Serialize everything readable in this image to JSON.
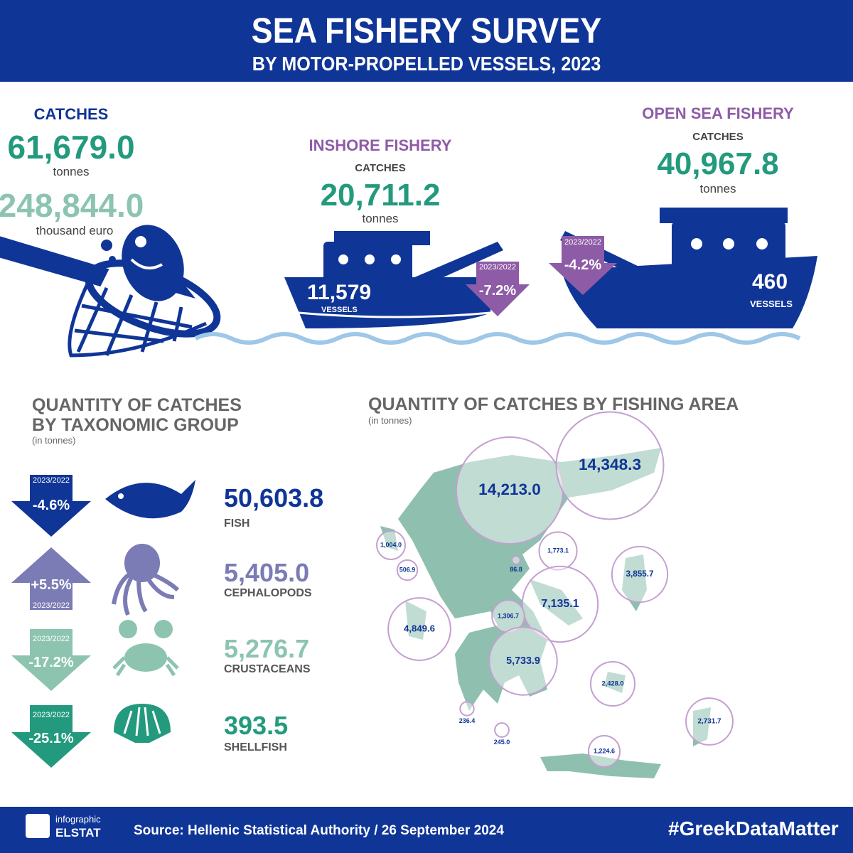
{
  "header": {
    "title": "SEA FISHERY SURVEY",
    "subtitle": "BY MOTOR-PROPELLED VESSELS, 2023"
  },
  "total": {
    "label": "CATCHES",
    "catches": "61,679.0",
    "catches_unit": "tonnes",
    "value": "248,844.0",
    "value_unit": "thousand euro"
  },
  "inshore": {
    "title": "INSHORE FISHERY",
    "catches_label": "CATCHES",
    "catches": "20,711.2",
    "unit": "tonnes",
    "vessels": "11,579",
    "vessels_label": "VESSELS",
    "period": "2023/2022",
    "change": "-7.2%"
  },
  "open_sea": {
    "title": "OPEN SEA FISHERY",
    "catches_label": "CATCHES",
    "catches": "40,967.8",
    "unit": "tonnes",
    "vessels": "460",
    "vessels_label": "VESSELS",
    "period": "2023/2022",
    "change": "-4.2%"
  },
  "taxonomic": {
    "title_lines": [
      "QUANTITY OF CATCHES",
      "BY TAXONOMIC GROUP"
    ],
    "unit": "(in tonnes)",
    "groups": [
      {
        "name": "FISH",
        "value": "50,603.8",
        "period": "2023/2022",
        "change": "-4.6%"
      },
      {
        "name": "CEPHALOPODS",
        "value": "5,405.0",
        "period": "2023/2022",
        "change": "+5.5%"
      },
      {
        "name": "CRUSTACEANS",
        "value": "5,276.7",
        "period": "2023/2022",
        "change": "-17.2%"
      },
      {
        "name": "SHELLFISH",
        "value": "393.5",
        "period": "2023/2022",
        "change": "-25.1%"
      }
    ]
  },
  "areas": {
    "title": "QUANTITY OF CATCHES BY FISHING AREA",
    "unit": "(in tonnes)",
    "bubbles": [
      {
        "value": 14213.0,
        "label": "14,213.0"
      },
      {
        "value": 14348.3,
        "label": "14,348.3"
      },
      {
        "value": 1004.0,
        "label": "1,004.0"
      },
      {
        "value": 506.9,
        "label": "506.9"
      },
      {
        "value": 86.8,
        "label": "86.8"
      },
      {
        "value": 1773.1,
        "label": "1,773.1"
      },
      {
        "value": 3855.7,
        "label": "3,855.7"
      },
      {
        "value": 7135.1,
        "label": "7,135.1"
      },
      {
        "value": 1306.7,
        "label": "1,306.7"
      },
      {
        "value": 4849.6,
        "label": "4,849.6"
      },
      {
        "value": 5733.9,
        "label": "5,733.9"
      },
      {
        "value": 2428.0,
        "label": "2,428.0"
      },
      {
        "value": 236.4,
        "label": "236.4"
      },
      {
        "value": 245.0,
        "label": "245.0"
      },
      {
        "value": 2731.7,
        "label": "2,731.7"
      },
      {
        "value": 1224.6,
        "label": "1,224.6"
      }
    ]
  },
  "footer": {
    "logo_top": "infographic",
    "logo_bottom": "ELSTAT",
    "source": "Source: Hellenic Statistical Authority / 26 September 2024",
    "hashtag": "#GreekDataMatter"
  }
}
